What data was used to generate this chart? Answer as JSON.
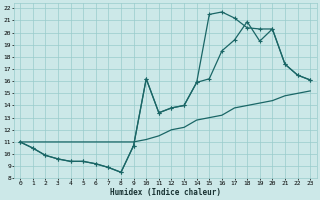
{
  "xlabel": "Humidex (Indice chaleur)",
  "bg_color": "#cce8e8",
  "grid_color": "#99cccc",
  "line_color": "#1a6666",
  "xlim": [
    -0.5,
    23.5
  ],
  "ylim": [
    8,
    22.4
  ],
  "xticks": [
    0,
    1,
    2,
    3,
    4,
    5,
    6,
    7,
    8,
    9,
    10,
    11,
    12,
    13,
    14,
    15,
    16,
    17,
    18,
    19,
    20,
    21,
    22,
    23
  ],
  "yticks": [
    8,
    9,
    10,
    11,
    12,
    13,
    14,
    15,
    16,
    17,
    18,
    19,
    20,
    21,
    22
  ],
  "curve_min": {
    "x": [
      0,
      1,
      2,
      3,
      4,
      5,
      6,
      7,
      8,
      9,
      10,
      11,
      12,
      13,
      14,
      15,
      16,
      17,
      18,
      19,
      20,
      21,
      22,
      23
    ],
    "y": [
      11,
      11,
      11,
      11,
      11,
      11,
      11,
      11,
      11,
      11,
      11.2,
      11.5,
      12,
      12.2,
      12.8,
      13,
      13.2,
      13.8,
      14,
      14.2,
      14.4,
      14.8,
      15,
      15.2
    ]
  },
  "curve_mid": {
    "x": [
      0,
      1,
      2,
      3,
      4,
      5,
      6,
      7,
      8,
      9,
      10,
      11,
      12,
      13,
      14,
      15,
      16,
      17,
      18,
      19,
      20,
      21,
      22,
      23
    ],
    "y": [
      11,
      10.5,
      9.9,
      9.6,
      9.4,
      9.4,
      9.2,
      8.9,
      8.5,
      10.7,
      16.2,
      13.4,
      13.8,
      14.0,
      15.9,
      16.2,
      18.5,
      19.4,
      20.9,
      19.3,
      20.3,
      17.4,
      16.5,
      16.1
    ]
  },
  "curve_max": {
    "x": [
      0,
      1,
      2,
      3,
      4,
      5,
      6,
      7,
      8,
      9,
      10,
      11,
      12,
      13,
      14,
      15,
      16,
      17,
      18,
      19,
      20,
      21,
      22,
      23
    ],
    "y": [
      11,
      10.5,
      9.9,
      9.6,
      9.4,
      9.4,
      9.2,
      8.9,
      8.5,
      10.7,
      16.2,
      13.4,
      13.8,
      14.0,
      15.9,
      21.5,
      21.7,
      21.2,
      20.4,
      20.3,
      20.3,
      17.4,
      16.5,
      16.1
    ]
  }
}
